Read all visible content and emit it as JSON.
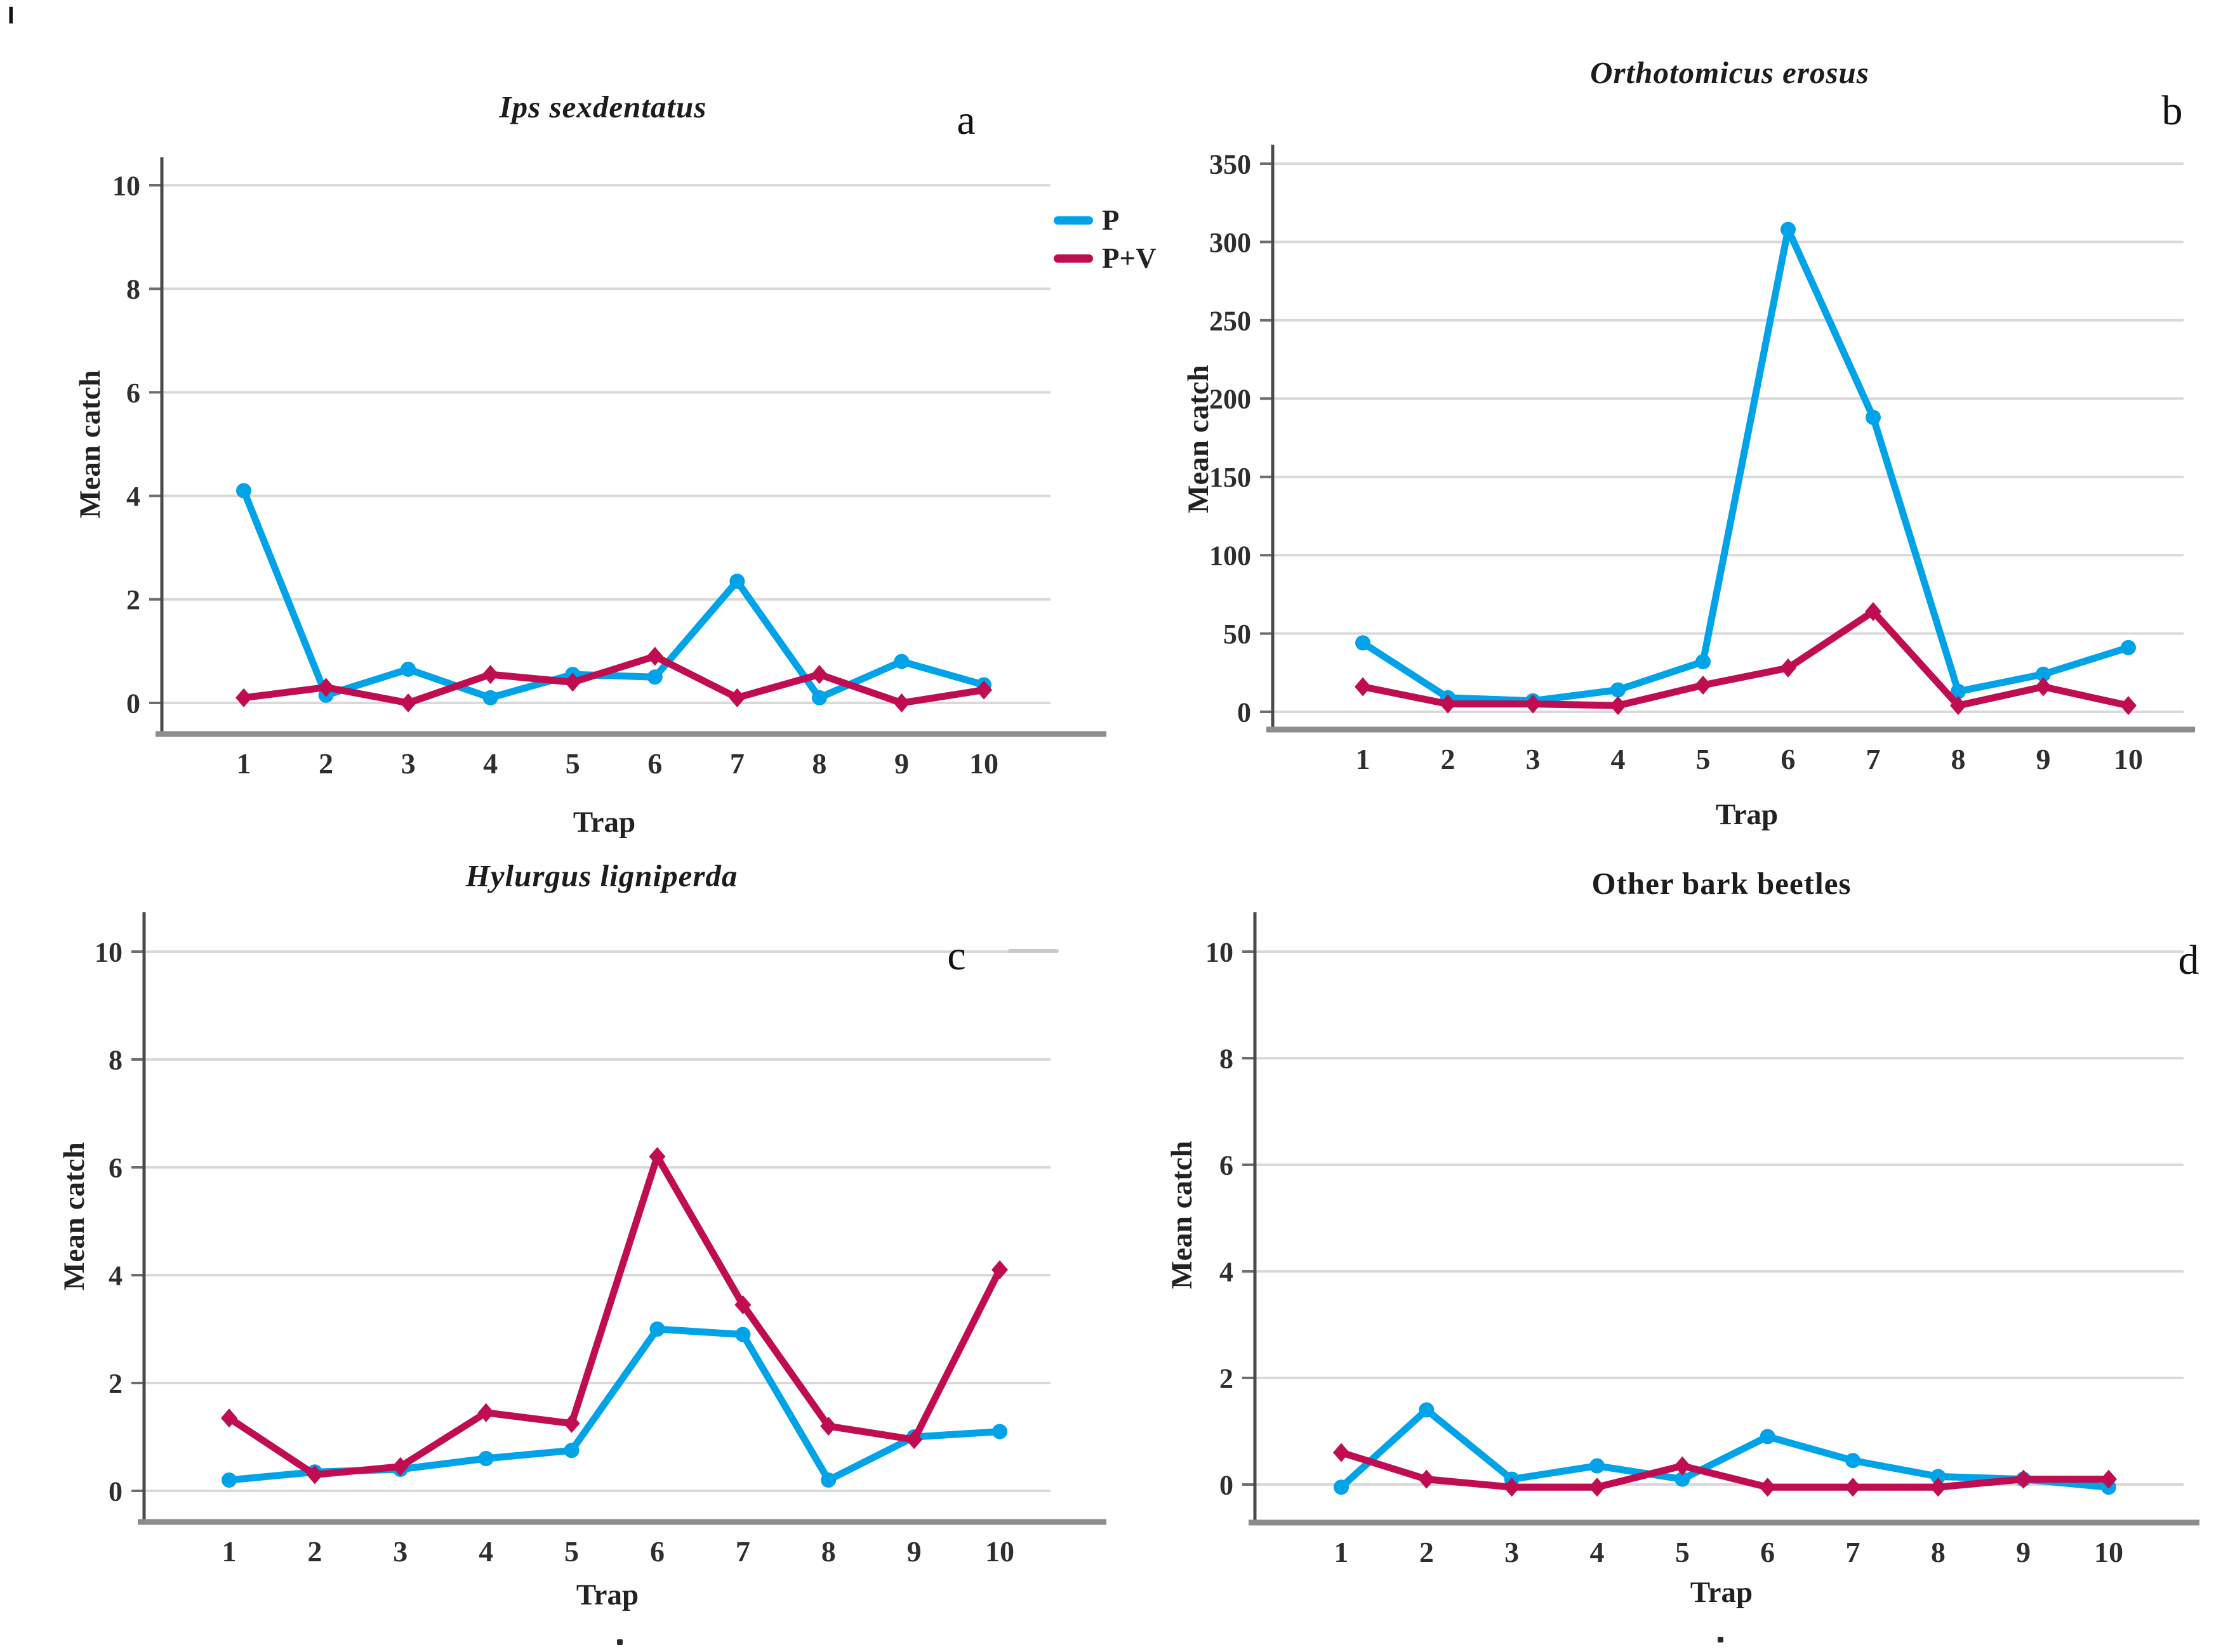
{
  "figure": {
    "stray_mark": "I",
    "background": "#ffffff",
    "legend": {
      "items": [
        {
          "label": "P",
          "color": "#00A2E8"
        },
        {
          "label": "P+V",
          "color": "#C00C50"
        }
      ]
    },
    "colors": {
      "series_p": "#00A2E8",
      "series_pv": "#C00C50",
      "gridline": "#D9D9D9",
      "y_axis": "#4A4A4A",
      "x_axis": "#8C8C8C",
      "tick_text": "#2E2E2E"
    }
  },
  "chart_data": [
    {
      "type": "line",
      "title": "Ips sexdentatus",
      "title_italic": true,
      "panel_letter": "a",
      "xlabel": "Trap",
      "ylabel": "Mean catch",
      "categories": [
        "1",
        "2",
        "3",
        "4",
        "5",
        "6",
        "7",
        "8",
        "9",
        "10"
      ],
      "ylim": [
        0,
        10
      ],
      "ytick_step": 2,
      "grid": true,
      "legend_position": "right-of-plot",
      "series": [
        {
          "name": "P",
          "color": "#00A2E8",
          "marker": "circle",
          "values": [
            4.1,
            0.15,
            0.65,
            0.1,
            0.55,
            0.5,
            2.35,
            0.1,
            0.8,
            0.35
          ]
        },
        {
          "name": "P+V",
          "color": "#C00C50",
          "marker": "diamond",
          "values": [
            0.1,
            0.3,
            0.0,
            0.55,
            0.4,
            0.9,
            0.1,
            0.55,
            0.0,
            0.25
          ]
        }
      ]
    },
    {
      "type": "line",
      "title": "Orthotomicus erosus",
      "title_italic": true,
      "panel_letter": "b",
      "xlabel": "Trap",
      "ylabel": "Mean catch",
      "categories": [
        "1",
        "2",
        "3",
        "4",
        "5",
        "6",
        "7",
        "8",
        "9",
        "10"
      ],
      "ylim": [
        0,
        350
      ],
      "ytick_step": 50,
      "grid": true,
      "legend_position": "none",
      "series": [
        {
          "name": "P",
          "color": "#00A2E8",
          "marker": "circle",
          "values": [
            44,
            9,
            7,
            14,
            32,
            308,
            188,
            13,
            24,
            41
          ]
        },
        {
          "name": "P+V",
          "color": "#C00C50",
          "marker": "diamond",
          "values": [
            16,
            5,
            5,
            4,
            17,
            28,
            64,
            4,
            16,
            4
          ]
        }
      ]
    },
    {
      "type": "line",
      "title": "Hylurgus ligniperda",
      "title_italic": true,
      "panel_letter": "c",
      "xlabel": "Trap",
      "ylabel": "Mean catch",
      "categories": [
        "1",
        "2",
        "3",
        "4",
        "5",
        "6",
        "7",
        "8",
        "9",
        "10"
      ],
      "ylim": [
        0,
        10
      ],
      "ytick_step": 2,
      "grid": true,
      "legend_position": "none",
      "series": [
        {
          "name": "P",
          "color": "#00A2E8",
          "marker": "circle",
          "values": [
            0.2,
            0.35,
            0.4,
            0.6,
            0.75,
            3.0,
            2.9,
            0.2,
            1.0,
            1.1
          ]
        },
        {
          "name": "P+V",
          "color": "#C00C50",
          "marker": "diamond",
          "values": [
            1.35,
            0.3,
            0.45,
            1.45,
            1.25,
            6.2,
            3.45,
            1.2,
            0.95,
            4.1
          ]
        }
      ]
    },
    {
      "type": "line",
      "title": "Other bark beetles",
      "title_italic": false,
      "panel_letter": "d",
      "xlabel": "Trap",
      "ylabel": "Mean catch",
      "categories": [
        "1",
        "2",
        "3",
        "4",
        "5",
        "6",
        "7",
        "8",
        "9",
        "10"
      ],
      "ylim": [
        0,
        10
      ],
      "ytick_step": 2,
      "grid": true,
      "legend_position": "none",
      "series": [
        {
          "name": "P",
          "color": "#00A2E8",
          "marker": "circle",
          "values": [
            -0.05,
            1.4,
            0.1,
            0.35,
            0.1,
            0.9,
            0.45,
            0.15,
            0.1,
            -0.05
          ]
        },
        {
          "name": "P+V",
          "color": "#C00C50",
          "marker": "diamond",
          "values": [
            0.6,
            0.1,
            -0.05,
            -0.05,
            0.35,
            -0.05,
            -0.05,
            -0.05,
            0.1,
            0.1
          ]
        }
      ]
    }
  ]
}
